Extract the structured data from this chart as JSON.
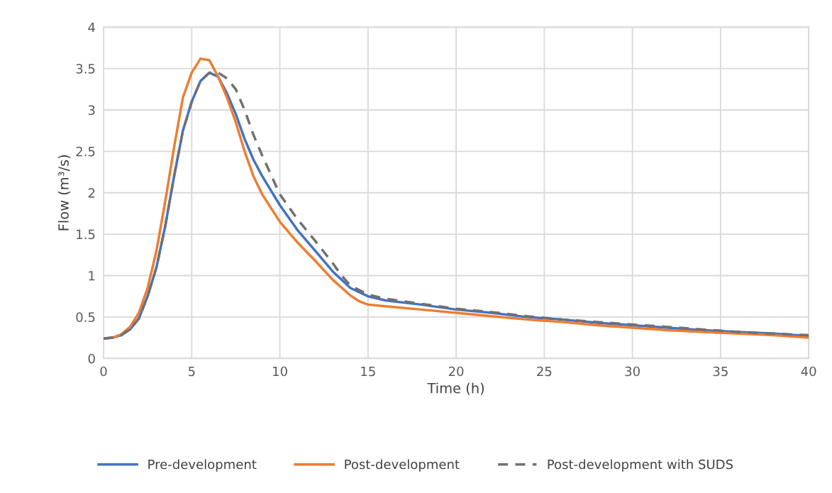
{
  "chart_data": {
    "type": "line",
    "xlabel": "Time (h)",
    "ylabel": "Flow (m³/s)",
    "xlim": [
      0,
      40
    ],
    "xticks": [
      0,
      5,
      10,
      15,
      20,
      25,
      30,
      35,
      40
    ],
    "ylim": [
      0,
      4
    ],
    "yticks": [
      0,
      0.5,
      1,
      1.5,
      2,
      2.5,
      3,
      3.5,
      4
    ],
    "grid": true,
    "legend": "bottom",
    "marker": "none",
    "series": [
      {
        "name": "Pre-development",
        "color": "#4472c4",
        "line_style": "solid",
        "x": [
          0,
          0.5,
          1,
          1.5,
          2,
          2.5,
          3,
          3.5,
          4,
          4.5,
          5,
          5.5,
          6,
          6.5,
          7,
          7.5,
          8,
          8.5,
          9,
          10,
          11,
          12,
          13,
          14,
          15,
          16,
          18,
          20,
          22,
          24,
          26,
          28,
          30,
          32,
          34,
          36,
          38,
          40
        ],
        "values": [
          0.24,
          0.25,
          0.28,
          0.35,
          0.48,
          0.75,
          1.1,
          1.6,
          2.2,
          2.75,
          3.1,
          3.35,
          3.45,
          3.4,
          3.2,
          2.95,
          2.65,
          2.4,
          2.2,
          1.85,
          1.55,
          1.3,
          1.05,
          0.85,
          0.75,
          0.7,
          0.65,
          0.59,
          0.55,
          0.5,
          0.47,
          0.43,
          0.4,
          0.37,
          0.34,
          0.32,
          0.3,
          0.27
        ]
      },
      {
        "name": "Post-development",
        "color": "#ed7d31",
        "line_style": "solid",
        "x": [
          0,
          0.5,
          1,
          1.5,
          2,
          2.5,
          3,
          3.5,
          4,
          4.5,
          5,
          5.5,
          6,
          6.5,
          7,
          7.5,
          8,
          8.5,
          9,
          10,
          11,
          12,
          13,
          14,
          14.5,
          15,
          16,
          18,
          20,
          22,
          24,
          26,
          28,
          30,
          32,
          34,
          36,
          38,
          40
        ],
        "values": [
          0.24,
          0.25,
          0.29,
          0.38,
          0.55,
          0.85,
          1.3,
          1.9,
          2.55,
          3.15,
          3.45,
          3.62,
          3.6,
          3.4,
          3.15,
          2.85,
          2.5,
          2.2,
          1.98,
          1.65,
          1.4,
          1.18,
          0.95,
          0.76,
          0.69,
          0.65,
          0.63,
          0.59,
          0.55,
          0.51,
          0.47,
          0.44,
          0.4,
          0.37,
          0.34,
          0.32,
          0.3,
          0.28,
          0.25
        ]
      },
      {
        "name": "Post-development with SUDS",
        "color": "#707070",
        "line_style": "dashed",
        "x": [
          0,
          0.5,
          1,
          1.5,
          2,
          2.5,
          3,
          3.5,
          4,
          4.5,
          5,
          5.5,
          6,
          6.5,
          7,
          7.5,
          8,
          8.5,
          9,
          10,
          11,
          12,
          13,
          13.5,
          14,
          15,
          16,
          18,
          20,
          22,
          24,
          26,
          28,
          30,
          32,
          34,
          36,
          38,
          40
        ],
        "values": [
          0.24,
          0.25,
          0.28,
          0.35,
          0.48,
          0.75,
          1.1,
          1.6,
          2.2,
          2.75,
          3.1,
          3.35,
          3.45,
          3.45,
          3.38,
          3.25,
          3.0,
          2.7,
          2.45,
          1.98,
          1.68,
          1.42,
          1.15,
          1.0,
          0.88,
          0.77,
          0.72,
          0.66,
          0.6,
          0.56,
          0.51,
          0.47,
          0.44,
          0.41,
          0.38,
          0.35,
          0.32,
          0.3,
          0.28
        ]
      }
    ]
  }
}
